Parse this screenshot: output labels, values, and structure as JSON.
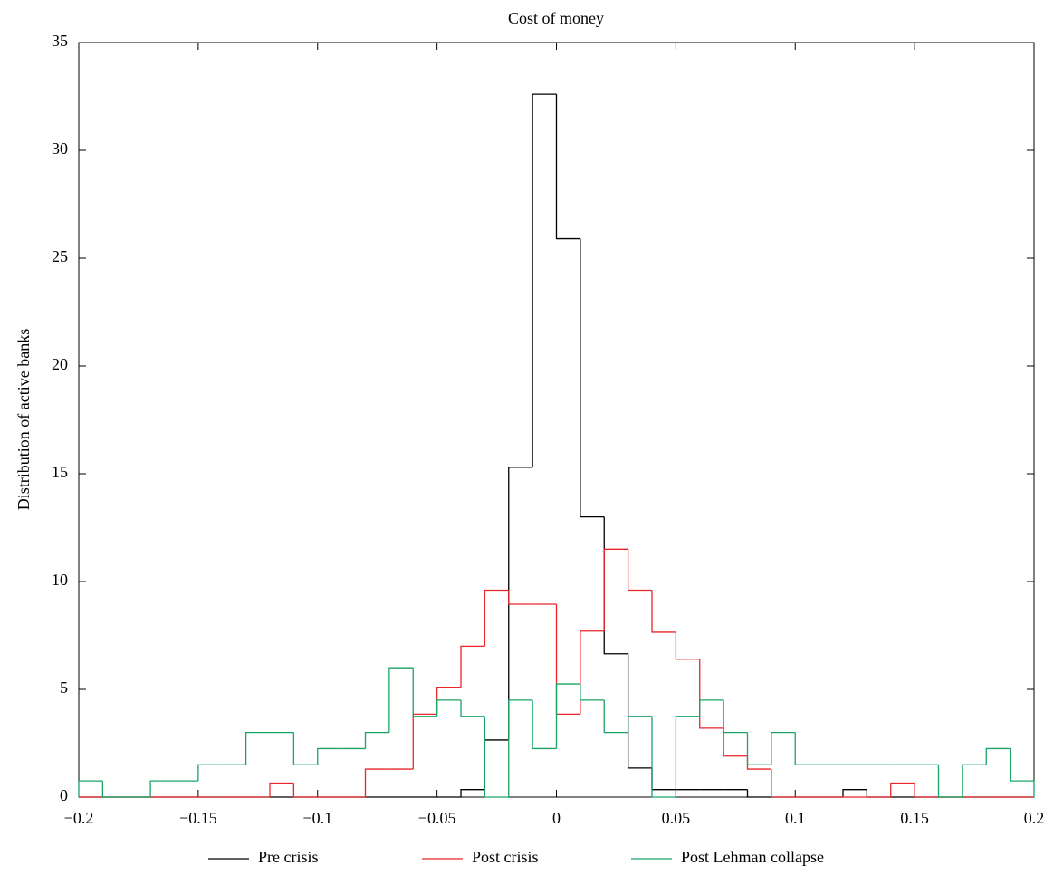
{
  "chart_data": {
    "type": "histogram",
    "title": "Cost of money",
    "y_label": "Distribution of active banks",
    "bins": [
      {
        "value": -0.2,
        "label": "−0.2"
      },
      -0.19,
      -0.18,
      -0.17,
      -0.16,
      {
        "value": -0.15,
        "label": "−0.15"
      },
      -0.14,
      -0.13,
      -0.12,
      -0.11,
      {
        "value": -0.1,
        "label": "−0.1"
      },
      -0.09,
      -0.08,
      -0.07,
      -0.06,
      {
        "value": -0.05,
        "label": "−0.05"
      },
      -0.04,
      -0.03,
      -0.02,
      -0.01,
      0,
      0.01,
      0.02,
      0.03,
      0.04,
      0.05,
      0.06,
      0.07,
      0.08,
      0.09,
      0.1,
      0.11,
      0.12,
      0.13,
      0.14,
      0.15,
      0.16,
      0.17,
      0.18,
      0.19,
      0.2
    ],
    "series": [
      {
        "name": "Pre crisis",
        "color": "#000000",
        "values": [
          0,
          0,
          0,
          0,
          0,
          0,
          0,
          0,
          0,
          0,
          0,
          0,
          0,
          0,
          0,
          0,
          0.35,
          2.65,
          15.3,
          32.6,
          25.9,
          13.0,
          6.65,
          1.35,
          0.35,
          0.35,
          0.35,
          0.35,
          0,
          0,
          0,
          0,
          0.35,
          0,
          0,
          0,
          0,
          0,
          0,
          0
        ]
      },
      {
        "name": "Post crisis",
        "color": "#e8262a",
        "values": [
          0,
          0,
          0,
          0,
          0,
          0,
          0,
          0,
          0.65,
          0,
          0,
          0,
          1.3,
          1.3,
          3.85,
          5.1,
          7.0,
          9.6,
          8.95,
          8.95,
          3.85,
          7.7,
          11.5,
          9.6,
          7.65,
          6.4,
          3.2,
          1.9,
          1.3,
          0,
          0,
          0,
          0,
          0,
          0.65,
          0,
          0,
          0,
          0,
          0
        ]
      },
      {
        "name": "Post Lehman collapse",
        "color": "#1aa364",
        "values": [
          0.75,
          0,
          0,
          0.75,
          0.75,
          1.5,
          1.5,
          3.0,
          3.0,
          1.5,
          2.25,
          2.25,
          3.0,
          6.0,
          3.75,
          4.5,
          3.75,
          0,
          4.5,
          2.25,
          5.25,
          4.5,
          3.0,
          3.75,
          0,
          3.75,
          4.5,
          3.0,
          1.5,
          3.0,
          1.5,
          1.5,
          1.5,
          1.5,
          1.5,
          1.5,
          0,
          1.5,
          2.25,
          0.75
        ]
      }
    ],
    "xlim": [
      -0.2,
      0.2
    ],
    "xticks": [
      {
        "value": -0.2,
        "label": "−0.2"
      },
      {
        "value": -0.15,
        "label": "−0.15"
      },
      {
        "value": -0.1,
        "label": "−0.1"
      },
      {
        "value": -0.05,
        "label": "−0.05"
      },
      0,
      0.05,
      0.1,
      0.15,
      0.2
    ],
    "ylim": [
      0,
      35
    ],
    "yticks": [
      0,
      5,
      10,
      15,
      20,
      25,
      30,
      35
    ],
    "legend": "bottom"
  }
}
